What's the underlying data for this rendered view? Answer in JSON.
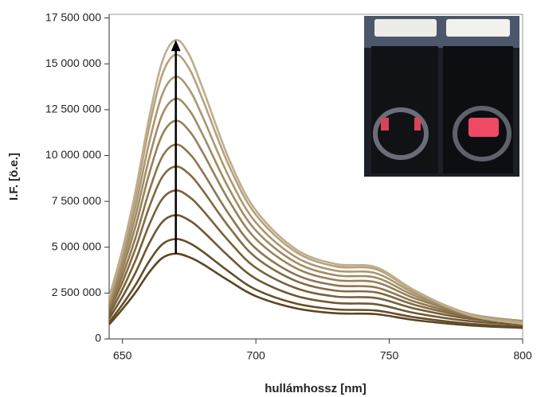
{
  "chart_data": {
    "type": "line",
    "x_label": "hullámhossz [nm]",
    "y_label": "I.F. [ö.e.]",
    "x": [
      645,
      650,
      655,
      660,
      665,
      670,
      675,
      680,
      690,
      700,
      715,
      730,
      745,
      760,
      780,
      800
    ],
    "xlim": [
      645,
      800
    ],
    "xticks": [
      650,
      700,
      750,
      800
    ],
    "ylim": [
      0,
      17700000
    ],
    "yticks": [
      0,
      {
        "value": 2500000,
        "label": "2 500 000"
      },
      {
        "value": 5000000,
        "label": "5 000 000"
      },
      {
        "value": 7500000,
        "label": "7 500 000"
      },
      {
        "value": 10000000,
        "label": "10 000 000"
      },
      {
        "value": 12500000,
        "label": "12 500 000"
      },
      {
        "value": 15000000,
        "label": "15 000 000"
      },
      {
        "value": 17500000,
        "label": "17 500 000"
      }
    ],
    "arrow": {
      "x": 670,
      "from": 4650000,
      "to": 16300000,
      "color": "#000000"
    },
    "series": [
      {
        "color": "#5c4522",
        "values": [
          790000,
          1630000,
          2560000,
          3630000,
          4420000,
          4650000,
          4460000,
          4090000,
          3160000,
          2330000,
          1670000,
          1400000,
          1350000,
          1020000,
          740000,
          600000
        ]
      },
      {
        "color": "#654e29",
        "values": [
          910000,
          1880000,
          2970000,
          4230000,
          5170000,
          5450000,
          5230000,
          4770000,
          3660000,
          2690000,
          1930000,
          1610000,
          1550000,
          1170000,
          830000,
          660000
        ]
      },
      {
        "color": "#6f5731",
        "values": [
          1110000,
          2300000,
          3650000,
          5210000,
          6390000,
          6750000,
          6470000,
          5890000,
          4480000,
          3280000,
          2350000,
          1960000,
          1890000,
          1400000,
          970000,
          770000
        ]
      },
      {
        "color": "#796139",
        "values": [
          1300000,
          2710000,
          4330000,
          6220000,
          7650000,
          8100000,
          7750000,
          7030000,
          5310000,
          3880000,
          2770000,
          2310000,
          2230000,
          1640000,
          1100000,
          860000
        ]
      },
      {
        "color": "#836b43",
        "values": [
          1490000,
          3100000,
          4980000,
          7180000,
          8850000,
          9400000,
          8990000,
          8120000,
          6090000,
          4440000,
          3160000,
          2630000,
          2540000,
          1840000,
          1200000,
          920000
        ]
      },
      {
        "color": "#8d764e",
        "values": [
          1640000,
          3450000,
          5570000,
          8060000,
          9960000,
          10600000,
          10120000,
          9120000,
          6780000,
          4930000,
          3500000,
          2920000,
          2810000,
          2010000,
          1270000,
          950000
        ]
      },
      {
        "color": "#978159",
        "values": [
          1810000,
          3810000,
          6190000,
          9000000,
          11160000,
          11900000,
          11350000,
          10190000,
          7520000,
          5450000,
          3860000,
          3210000,
          3090000,
          2190000,
          1330000,
          980000
        ]
      },
      {
        "color": "#a18c65",
        "values": [
          1950000,
          4130000,
          6750000,
          9850000,
          12260000,
          13100000,
          12480000,
          11160000,
          8170000,
          5910000,
          4170000,
          3470000,
          3340000,
          2330000,
          1360000,
          970000
        ]
      },
      {
        "color": "#ab9772",
        "values": [
          2090000,
          4430000,
          7290000,
          10700000,
          13360000,
          14300000,
          13610000,
          12130000,
          8810000,
          6350000,
          4460000,
          3720000,
          3580000,
          2460000,
          1370000,
          940000
        ]
      },
      {
        "color": "#b5a27f",
        "values": [
          2220000,
          4730000,
          7830000,
          11530000,
          14450000,
          15500000,
          14740000,
          13080000,
          9420000,
          6770000,
          4740000,
          3950000,
          3800000,
          2570000,
          1360000,
          900000
        ]
      },
      {
        "color": "#bfad8c",
        "values": [
          2280000,
          4890000,
          8150000,
          12060000,
          15160000,
          16300000,
          15490000,
          13690000,
          9780000,
          7010000,
          4890000,
          4080000,
          3910000,
          2610000,
          1300000,
          820000
        ]
      }
    ]
  }
}
